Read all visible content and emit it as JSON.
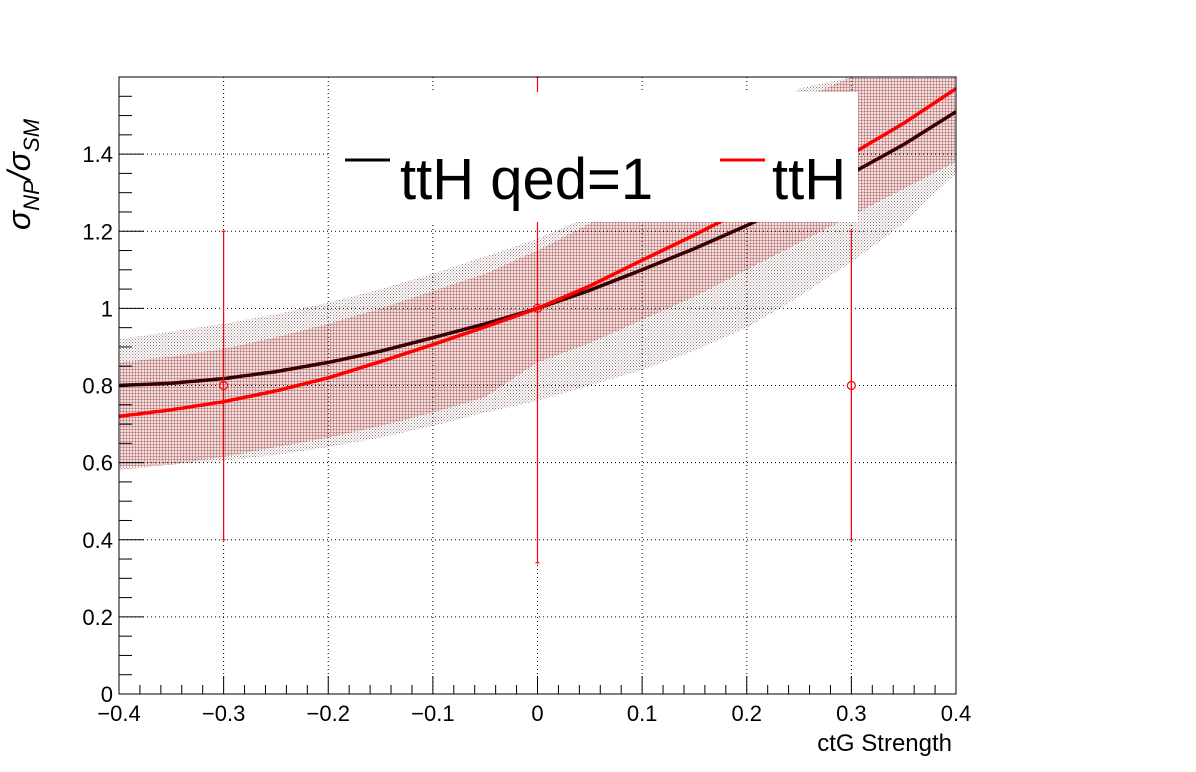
{
  "chart_data": {
    "type": "line",
    "xlabel": "ctG Strength",
    "ylabel": "σNP/σSM",
    "xlim": [
      -0.4,
      0.4
    ],
    "ylim": [
      0,
      1.6
    ],
    "xticks": [
      "−0.4",
      "−0.3",
      "−0.2",
      "−0.1",
      "0",
      "0.1",
      "0.2",
      "0.3",
      "0.4"
    ],
    "xtick_values": [
      -0.4,
      -0.3,
      -0.2,
      -0.1,
      0,
      0.1,
      0.2,
      0.3,
      0.4
    ],
    "yticks": [
      "0",
      "0.2",
      "0.4",
      "0.6",
      "0.8",
      "1",
      "1.2",
      "1.4"
    ],
    "ytick_values": [
      0,
      0.2,
      0.4,
      0.6,
      0.8,
      1.0,
      1.2,
      1.4
    ],
    "grid": true,
    "legend_position": "top",
    "series": [
      {
        "name": "ttH qed=1",
        "color": "#000000",
        "x": [
          -0.4,
          -0.35,
          -0.3,
          -0.25,
          -0.2,
          -0.15,
          -0.1,
          -0.05,
          0,
          0.05,
          0.1,
          0.15,
          0.2,
          0.25,
          0.3,
          0.35,
          0.4
        ],
        "y": [
          0.8,
          0.806,
          0.818,
          0.836,
          0.86,
          0.889,
          0.924,
          0.96,
          1.0,
          1.047,
          1.1,
          1.155,
          1.215,
          1.28,
          1.35,
          1.425,
          1.51
        ],
        "band_lower": [
          0.59,
          0.595,
          0.605,
          0.62,
          0.64,
          0.665,
          0.695,
          0.73,
          0.76,
          0.8,
          0.84,
          0.89,
          0.95,
          1.03,
          1.12,
          1.22,
          1.35
        ],
        "band_upper": [
          0.92,
          0.94,
          0.96,
          0.985,
          1.015,
          1.05,
          1.09,
          1.135,
          1.18,
          1.24,
          1.31,
          1.39,
          1.48,
          1.57,
          1.6,
          1.6,
          1.6
        ]
      },
      {
        "name": "ttH",
        "color": "#ff0000",
        "x": [
          -0.4,
          -0.35,
          -0.3,
          -0.25,
          -0.2,
          -0.15,
          -0.1,
          -0.05,
          0,
          0.05,
          0.1,
          0.15,
          0.2,
          0.25,
          0.3,
          0.35,
          0.4
        ],
        "y": [
          0.72,
          0.737,
          0.758,
          0.786,
          0.82,
          0.862,
          0.906,
          0.952,
          1.0,
          1.058,
          1.125,
          1.19,
          1.26,
          1.33,
          1.4,
          1.48,
          1.57
        ],
        "band_lower": [
          0.58,
          0.595,
          0.615,
          0.64,
          0.665,
          0.695,
          0.73,
          0.77,
          0.86,
          0.91,
          0.97,
          1.03,
          1.1,
          1.17,
          1.24,
          1.31,
          1.38
        ],
        "band_upper": [
          0.86,
          0.875,
          0.895,
          0.925,
          0.96,
          1.0,
          1.045,
          1.09,
          1.15,
          1.22,
          1.29,
          1.37,
          1.45,
          1.54,
          1.6,
          1.6,
          1.6
        ]
      }
    ],
    "data_points": {
      "color": "#ff0000",
      "points": [
        {
          "x": -0.3,
          "y": 0.8,
          "err_low": 0.4,
          "err_high": 1.2
        },
        {
          "x": 0.0,
          "y": 1.0,
          "err_low": 0.34,
          "err_high": 1.6
        },
        {
          "x": 0.3,
          "y": 0.8,
          "err_low": 0.4,
          "err_high": 1.2
        }
      ]
    }
  }
}
